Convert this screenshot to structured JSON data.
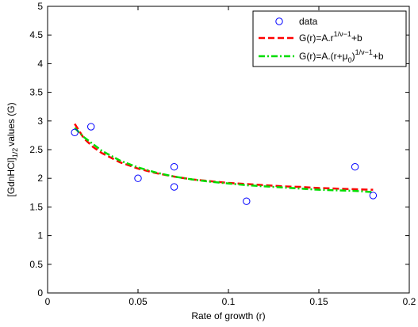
{
  "chart_data": {
    "type": "scatter",
    "xlabel": "Rate of growth (r)",
    "ylabel": {
      "main": "[GdnHCl]",
      "subscript": "1/2",
      "rest": "values (G)"
    },
    "xlim": [
      0,
      0.2
    ],
    "ylim": [
      0,
      5
    ],
    "x_ticks": [
      0,
      0.05,
      0.1,
      0.15,
      0.2
    ],
    "x_tick_labels": [
      "0",
      "0.05",
      "0.1",
      "0.15",
      "0.2"
    ],
    "y_ticks": [
      0,
      0.5,
      1,
      1.5,
      2,
      2.5,
      3,
      3.5,
      4,
      4.5,
      5
    ],
    "y_tick_labels": [
      "0",
      "0.5",
      "1",
      "1.5",
      "2",
      "2.5",
      "3",
      "3.5",
      "4",
      "4.5",
      "5"
    ],
    "grid": false,
    "legend_position": "top-right",
    "series": [
      {
        "name": "data",
        "kind": "markers",
        "marker": "circle",
        "color": "#0000ff",
        "points": [
          [
            0.015,
            2.8
          ],
          [
            0.024,
            2.9
          ],
          [
            0.05,
            2.0
          ],
          [
            0.07,
            2.2
          ],
          [
            0.07,
            1.85
          ],
          [
            0.11,
            1.6
          ],
          [
            0.17,
            2.2
          ],
          [
            0.18,
            1.7
          ]
        ]
      },
      {
        "name": "G(r)=A.r^(1/ν−1)+b",
        "legend_label": {
          "base": "G(r)=A.r",
          "superscript": "1/ν−1",
          "tail": "+b"
        },
        "kind": "line",
        "style": "dashed",
        "color": "#ff0000",
        "points": [
          [
            0.015,
            2.95
          ],
          [
            0.02,
            2.7
          ],
          [
            0.025,
            2.55
          ],
          [
            0.03,
            2.44
          ],
          [
            0.04,
            2.28
          ],
          [
            0.05,
            2.17
          ],
          [
            0.06,
            2.09
          ],
          [
            0.07,
            2.03
          ],
          [
            0.08,
            1.98
          ],
          [
            0.09,
            1.95
          ],
          [
            0.1,
            1.92
          ],
          [
            0.11,
            1.9
          ],
          [
            0.12,
            1.88
          ],
          [
            0.13,
            1.86
          ],
          [
            0.14,
            1.85
          ],
          [
            0.15,
            1.83
          ],
          [
            0.16,
            1.82
          ],
          [
            0.17,
            1.81
          ],
          [
            0.18,
            1.8
          ]
        ]
      },
      {
        "name": "G(r)=A.(r+μ0)^(1/ν−1)+b",
        "legend_label": {
          "base": "G(r)=A.(r+μ",
          "subscript": "0",
          "close": ")",
          "superscript": "1/ν−1",
          "tail": "+b"
        },
        "kind": "line",
        "style": "dashdot",
        "color": "#00dd00",
        "points": [
          [
            0.015,
            2.88
          ],
          [
            0.02,
            2.72
          ],
          [
            0.025,
            2.6
          ],
          [
            0.03,
            2.48
          ],
          [
            0.04,
            2.31
          ],
          [
            0.05,
            2.19
          ],
          [
            0.06,
            2.1
          ],
          [
            0.07,
            2.03
          ],
          [
            0.08,
            1.98
          ],
          [
            0.09,
            1.94
          ],
          [
            0.1,
            1.91
          ],
          [
            0.11,
            1.88
          ],
          [
            0.12,
            1.86
          ],
          [
            0.13,
            1.84
          ],
          [
            0.14,
            1.82
          ],
          [
            0.15,
            1.8
          ],
          [
            0.16,
            1.79
          ],
          [
            0.17,
            1.78
          ],
          [
            0.18,
            1.76
          ]
        ]
      }
    ]
  }
}
